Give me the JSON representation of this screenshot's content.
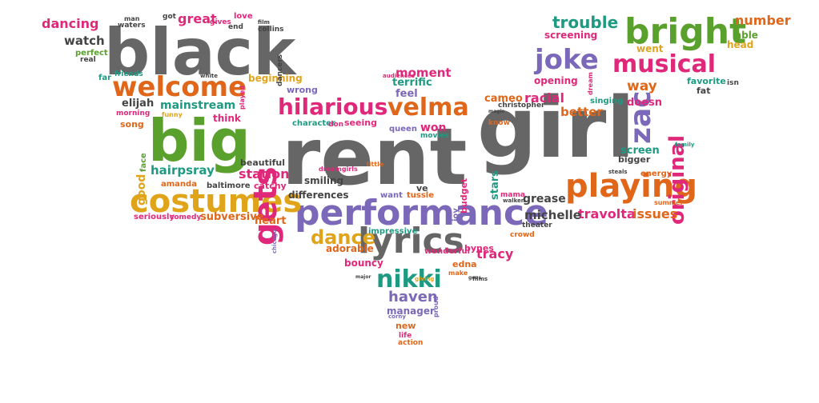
{
  "palette": {
    "gray": "#666666",
    "green": "#5aa02c",
    "orange": "#e0661a",
    "pink": "#e0287a",
    "purple": "#7b68b8",
    "teal": "#1e9a82",
    "gold": "#e0a41a",
    "dark": "#444444"
  },
  "words": [
    {
      "text": "rent",
      "color": "gray"
    },
    {
      "text": "girl",
      "color": "gray"
    },
    {
      "text": "black",
      "color": "gray"
    },
    {
      "text": "big",
      "color": "green"
    },
    {
      "text": "performance",
      "color": "purple"
    },
    {
      "text": "costumes",
      "color": "gold"
    },
    {
      "text": "bright",
      "color": "green"
    },
    {
      "text": "playing",
      "color": "orange"
    },
    {
      "text": "lyrics",
      "color": "gray"
    },
    {
      "text": "welcome",
      "color": "orange"
    },
    {
      "text": "musical",
      "color": "pink"
    },
    {
      "text": "gets",
      "color": "pink"
    },
    {
      "text": "joke",
      "color": "purple"
    },
    {
      "text": "zac",
      "color": "purple"
    },
    {
      "text": "hilarious",
      "color": "pink"
    },
    {
      "text": "velma",
      "color": "orange"
    },
    {
      "text": "nikki",
      "color": "teal"
    },
    {
      "text": "trouble",
      "color": "teal"
    },
    {
      "text": "dance",
      "color": "gold"
    },
    {
      "text": "original",
      "color": "pink"
    },
    {
      "text": "dancing",
      "color": "pink"
    },
    {
      "text": "great",
      "color": "pink"
    },
    {
      "text": "number",
      "color": "orange"
    },
    {
      "text": "watch",
      "color": "dark"
    },
    {
      "text": "station",
      "color": "pink"
    },
    {
      "text": "tracy",
      "color": "pink"
    },
    {
      "text": "racial",
      "color": "pink"
    },
    {
      "text": "travolta",
      "color": "pink"
    },
    {
      "text": "issues",
      "color": "orange"
    },
    {
      "text": "michelle",
      "color": "dark"
    },
    {
      "text": "haven",
      "color": "purple"
    },
    {
      "text": "hairpsray",
      "color": "teal"
    },
    {
      "text": "mainstream",
      "color": "teal"
    },
    {
      "text": "elijah",
      "color": "dark"
    },
    {
      "text": "screening",
      "color": "pink"
    },
    {
      "text": "able",
      "color": "green"
    },
    {
      "text": "head",
      "color": "gold"
    },
    {
      "text": "went",
      "color": "gold"
    },
    {
      "text": "way",
      "color": "orange"
    },
    {
      "text": "fat",
      "color": "dark"
    },
    {
      "text": "favorite",
      "color": "teal"
    },
    {
      "text": "screen",
      "color": "teal"
    },
    {
      "text": "bigger",
      "color": "dark"
    },
    {
      "text": "opening",
      "color": "pink"
    },
    {
      "text": "cameo",
      "color": "orange"
    },
    {
      "text": "better",
      "color": "orange"
    },
    {
      "text": "doesn",
      "color": "pink"
    },
    {
      "text": "singing",
      "color": "teal"
    },
    {
      "text": "christopher",
      "color": "dark"
    },
    {
      "text": "know",
      "color": "orange"
    },
    {
      "text": "stars",
      "color": "teal"
    },
    {
      "text": "grease",
      "color": "dark"
    },
    {
      "text": "mama",
      "color": "pink"
    },
    {
      "text": "moment",
      "color": "pink"
    },
    {
      "text": "terrific",
      "color": "teal"
    },
    {
      "text": "feel",
      "color": "purple"
    },
    {
      "text": "won",
      "color": "pink"
    },
    {
      "text": "movies",
      "color": "teal"
    },
    {
      "text": "queen",
      "color": "purple"
    },
    {
      "text": "seeing",
      "color": "pink"
    },
    {
      "text": "beginning",
      "color": "gold"
    },
    {
      "text": "wrong",
      "color": "purple"
    },
    {
      "text": "friends",
      "color": "teal"
    },
    {
      "text": "far",
      "color": "teal"
    },
    {
      "text": "perfect",
      "color": "green"
    },
    {
      "text": "real",
      "color": "dark"
    },
    {
      "text": "man",
      "color": "dark"
    },
    {
      "text": "waters",
      "color": "dark"
    },
    {
      "text": "got",
      "color": "dark"
    },
    {
      "text": "gives",
      "color": "pink"
    },
    {
      "text": "end",
      "color": "dark"
    },
    {
      "text": "love",
      "color": "pink"
    },
    {
      "text": "film",
      "color": "dark"
    },
    {
      "text": "collins",
      "color": "dark"
    },
    {
      "text": "song",
      "color": "orange"
    },
    {
      "text": "morning",
      "color": "pink"
    },
    {
      "text": "funny",
      "color": "gold"
    },
    {
      "text": "think",
      "color": "pink"
    },
    {
      "text": "character",
      "color": "teal"
    },
    {
      "text": "don",
      "color": "pink"
    },
    {
      "text": "good",
      "color": "gold"
    },
    {
      "text": "face",
      "color": "green"
    },
    {
      "text": "amanda",
      "color": "orange"
    },
    {
      "text": "beautiful",
      "color": "dark"
    },
    {
      "text": "smiling",
      "color": "dark"
    },
    {
      "text": "catchy",
      "color": "pink"
    },
    {
      "text": "baltimore",
      "color": "dark"
    },
    {
      "text": "differences",
      "color": "dark"
    },
    {
      "text": "want",
      "color": "purple"
    },
    {
      "text": "tussle",
      "color": "orange"
    },
    {
      "text": "ve",
      "color": "dark"
    },
    {
      "text": "joy",
      "color": "purple"
    },
    {
      "text": "seriously",
      "color": "pink"
    },
    {
      "text": "comedy",
      "color": "pink"
    },
    {
      "text": "subversive",
      "color": "orange"
    },
    {
      "text": "heart",
      "color": "orange"
    },
    {
      "text": "chicago",
      "color": "purple"
    },
    {
      "text": "impressive",
      "color": "teal"
    },
    {
      "text": "wonderful",
      "color": "pink"
    },
    {
      "text": "adorable",
      "color": "orange"
    },
    {
      "text": "bouncy",
      "color": "pink"
    },
    {
      "text": "edna",
      "color": "orange"
    },
    {
      "text": "bynes",
      "color": "pink"
    },
    {
      "text": "make",
      "color": "orange"
    },
    {
      "text": "manager",
      "color": "purple"
    },
    {
      "text": "new",
      "color": "orange"
    },
    {
      "text": "life",
      "color": "pink"
    },
    {
      "text": "action",
      "color": "orange"
    },
    {
      "text": "theater",
      "color": "dark"
    },
    {
      "text": "crowd",
      "color": "orange"
    },
    {
      "text": "budget",
      "color": "pink"
    },
    {
      "text": "walken",
      "color": "dark"
    },
    {
      "text": "films",
      "color": "dark"
    },
    {
      "text": "major",
      "color": "dark"
    },
    {
      "text": "little",
      "color": "orange"
    },
    {
      "text": "dreamgirls",
      "color": "pink"
    },
    {
      "text": "energy",
      "color": "orange"
    },
    {
      "text": "family",
      "color": "teal"
    },
    {
      "text": "summer",
      "color": "orange"
    },
    {
      "text": "steals",
      "color": "dark"
    },
    {
      "text": "isn",
      "color": "dark"
    },
    {
      "text": "white",
      "color": "dark"
    },
    {
      "text": "played",
      "color": "pink"
    },
    {
      "text": "magic",
      "color": "dark"
    },
    {
      "text": "dream",
      "color": "pink"
    },
    {
      "text": "audiences",
      "color": "pink"
    },
    {
      "text": "goes",
      "color": "dark"
    },
    {
      "text": "dancers",
      "color": "dark"
    },
    {
      "text": "giving",
      "color": "gold"
    },
    {
      "text": "proud",
      "color": "purple"
    },
    {
      "text": "corny",
      "color": "purple"
    }
  ]
}
